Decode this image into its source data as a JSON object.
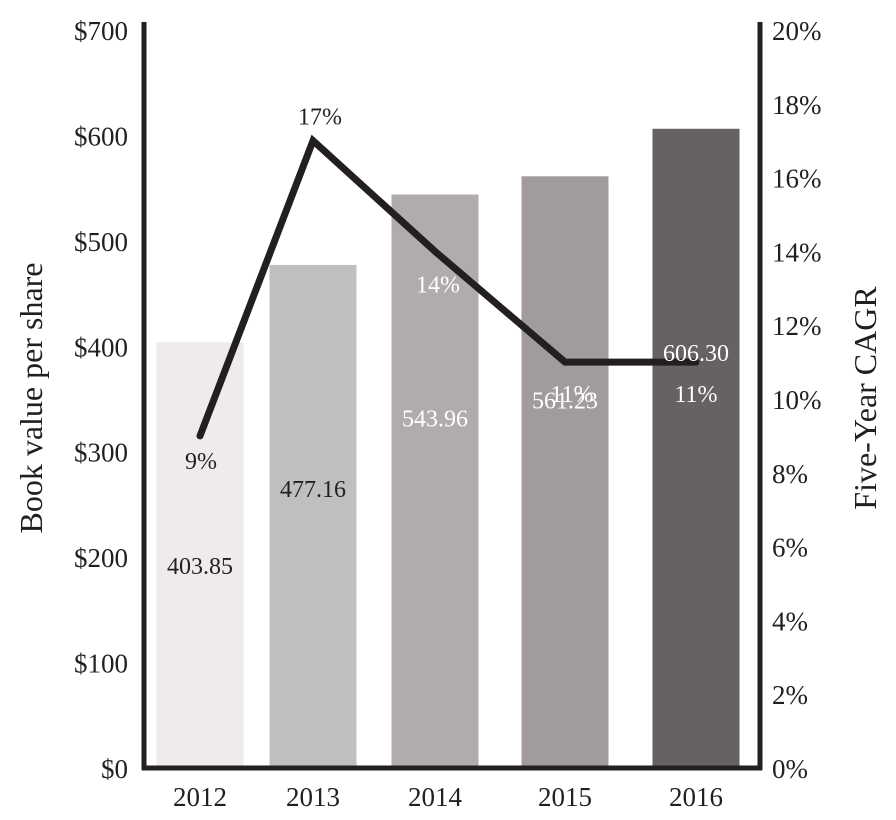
{
  "chart_data": {
    "type": "bar+line",
    "categories": [
      "2012",
      "2013",
      "2014",
      "2015",
      "2016"
    ],
    "bars": {
      "name": "Book value per share",
      "values": [
        403.85,
        477.16,
        543.96,
        561.23,
        606.3
      ],
      "labels": [
        "403.85",
        "477.16",
        "543.96",
        "561.23",
        "606.30"
      ],
      "colors": [
        "#efebea",
        "#c0bfbf",
        "#b0acab",
        "#a19b9b",
        "#676163"
      ],
      "label_colors": [
        "#231f20",
        "#231f20",
        "#ffffff",
        "#ffffff",
        "#ffffff"
      ]
    },
    "line": {
      "name": "Five-Year CAGR",
      "values": [
        9,
        17,
        14,
        11,
        11
      ],
      "labels": [
        "9%",
        "17%",
        "14%",
        "11%",
        "11%"
      ],
      "label_colors": [
        "#231f20",
        "#231f20",
        "#ffffff",
        "#ffffff",
        "#ffffff"
      ],
      "color": "#231f20"
    },
    "y_left": {
      "label": "Book value per share",
      "min": 0,
      "max": 700,
      "ticks": [
        "$0",
        "$100",
        "$200",
        "$300",
        "$400",
        "$500",
        "$600",
        "$700"
      ]
    },
    "y_right": {
      "label": "Five-Year CAGR",
      "min": 0,
      "max": 20,
      "ticks": [
        "0%",
        "2%",
        "4%",
        "6%",
        "8%",
        "10%",
        "12%",
        "14%",
        "16%",
        "18%",
        "20%"
      ]
    },
    "grid": false,
    "legend": "none"
  }
}
